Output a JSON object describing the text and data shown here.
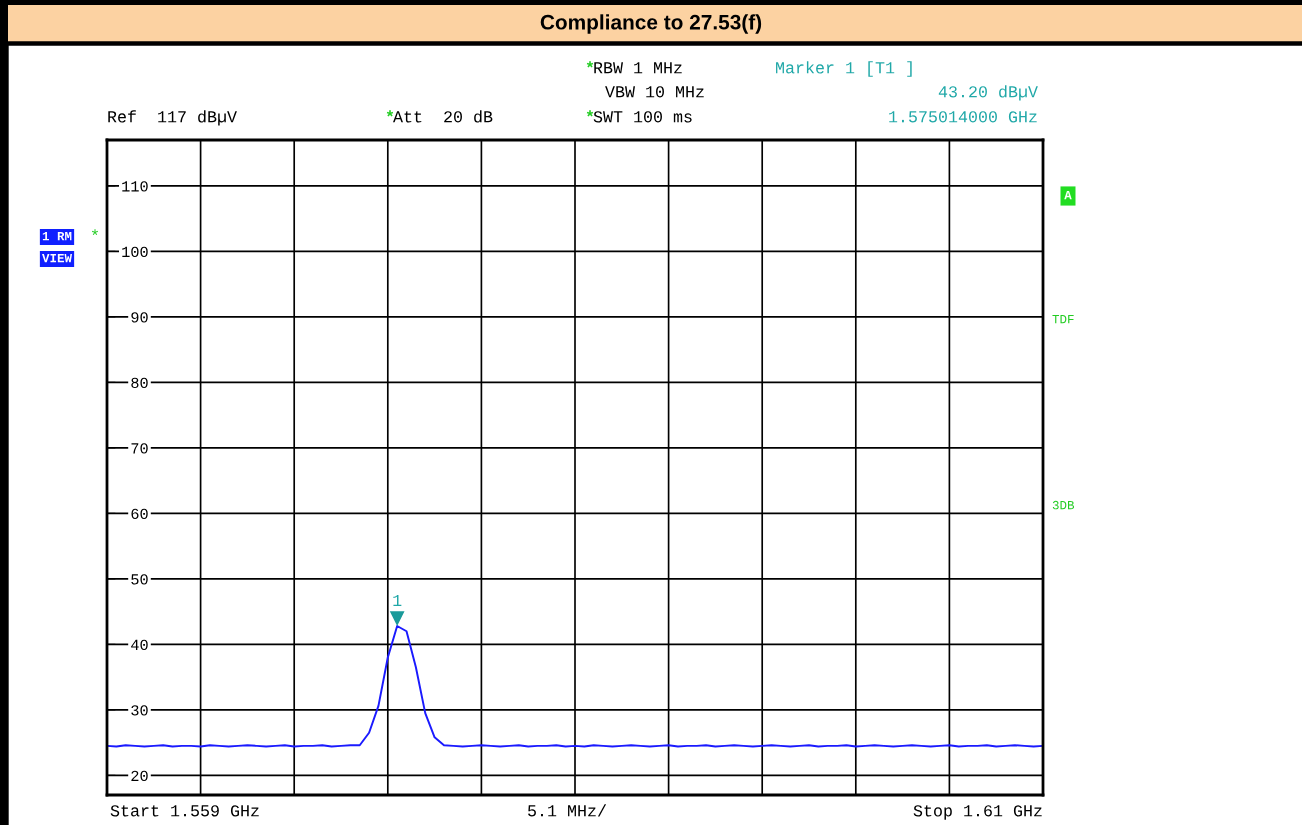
{
  "chart_data": {
    "type": "line",
    "title": "Compliance to 27.53(f)",
    "categories": [
      null,
      null,
      null,
      null,
      null,
      null,
      null,
      null,
      null,
      null,
      null,
      null,
      null,
      null,
      null,
      null,
      null,
      null,
      null,
      null,
      null,
      null,
      null,
      null,
      null,
      null,
      null,
      null,
      null,
      null,
      null,
      null,
      null,
      null,
      null,
      null,
      null,
      null,
      null,
      null,
      null,
      null,
      null,
      null,
      null,
      null,
      null,
      null,
      null,
      null,
      null,
      null,
      null,
      null,
      null,
      null,
      null,
      null,
      null,
      null,
      null,
      null,
      null,
      null,
      null,
      null,
      null,
      null,
      null,
      null,
      null,
      null,
      null,
      null,
      null,
      null,
      null,
      null,
      null,
      null,
      null,
      null,
      null,
      null,
      null,
      null,
      null,
      null,
      null,
      null,
      null,
      null,
      null,
      null,
      null,
      null,
      null,
      null,
      null,
      null,
      null
    ],
    "series": [
      {
        "color": "#1a1aff",
        "values": [
          24.5,
          24.4,
          24.6,
          24.5,
          24.4,
          24.5,
          24.6,
          24.4,
          24.5,
          24.5,
          24.4,
          24.6,
          24.5,
          24.4,
          24.5,
          24.6,
          24.5,
          24.4,
          24.5,
          24.6,
          24.4,
          24.5,
          24.5,
          24.6,
          24.4,
          24.5,
          24.6,
          24.6,
          26.5,
          30.6,
          38.0,
          42.8,
          42.0,
          36.5,
          29.5,
          25.8,
          24.6,
          24.5,
          24.4,
          24.5,
          24.6,
          24.5,
          24.4,
          24.5,
          24.6,
          24.4,
          24.5,
          24.5,
          24.6,
          24.4,
          24.5,
          24.4,
          24.6,
          24.5,
          24.4,
          24.5,
          24.6,
          24.5,
          24.4,
          24.5,
          24.6,
          24.4,
          24.5,
          24.5,
          24.6,
          24.4,
          24.5,
          24.6,
          24.5,
          24.4,
          24.5,
          24.6,
          24.5,
          24.4,
          24.5,
          24.6,
          24.4,
          24.5,
          24.5,
          24.6,
          24.4,
          24.5,
          24.6,
          24.5,
          24.4,
          24.5,
          24.6,
          24.5,
          24.4,
          24.5,
          24.6,
          24.4,
          24.5,
          24.5,
          24.6,
          24.4,
          24.5,
          24.6,
          24.5,
          24.4,
          24.5
        ]
      }
    ],
    "ylim": [
      17,
      117
    ],
    "yticks": [
      20,
      30,
      40,
      50,
      60,
      70,
      80,
      90,
      100,
      110
    ],
    "tick_labels": "y",
    "grid": true,
    "legend": false,
    "marker": "none",
    "line_style": "solid",
    "annotations": [
      "*RBW 1 MHz",
      "VBW 10 MHz",
      "*SWT 100 ms",
      "Ref  117 dBµV",
      "*Att  20 dB",
      "Marker 1 [T1 ]",
      "43.20 dBµV",
      "1.575014000 GHz",
      "1 RM",
      "VIEW",
      "A",
      "TDF",
      "3DB",
      "Start 1.559 GHz",
      "5.1 MHz/",
      "Stop 1.61 GHz",
      "*",
      "1"
    ]
  }
}
